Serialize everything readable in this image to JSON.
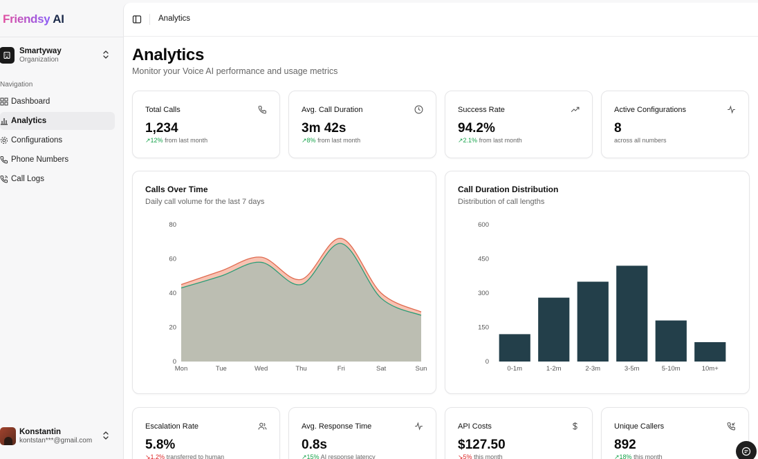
{
  "app": {
    "brand": "Friendsy",
    "brand_suffix": "AI"
  },
  "org": {
    "name": "Smartyway",
    "type": "Organization"
  },
  "nav": {
    "heading": "Navigation",
    "items": [
      {
        "label": "Dashboard",
        "icon": "dashboard-icon"
      },
      {
        "label": "Analytics",
        "icon": "bar-chart-icon",
        "active": true
      },
      {
        "label": "Configurations",
        "icon": "gear-icon"
      },
      {
        "label": "Phone Numbers",
        "icon": "phone-icon"
      },
      {
        "label": "Call Logs",
        "icon": "phone-log-icon"
      }
    ]
  },
  "user": {
    "name": "Konstantin",
    "email": "kontstan***@gmail.com"
  },
  "breadcrumb": "Analytics",
  "page": {
    "title": "Analytics",
    "subtitle": "Monitor your Voice AI performance and usage metrics"
  },
  "stats_top": [
    {
      "label": "Total Calls",
      "value": "1,234",
      "delta": "12%",
      "direction": "up",
      "note": "from last month",
      "icon": "phone-icon"
    },
    {
      "label": "Avg. Call Duration",
      "value": "3m 42s",
      "delta": "8%",
      "direction": "up",
      "note": "from last month",
      "icon": "clock-icon"
    },
    {
      "label": "Success Rate",
      "value": "94.2%",
      "delta": "2.1%",
      "direction": "up",
      "note": "from last month",
      "icon": "trending-up-icon"
    },
    {
      "label": "Active Configurations",
      "value": "8",
      "delta": "",
      "direction": "none",
      "note": "across all numbers",
      "icon": "activity-icon"
    }
  ],
  "stats_bottom": [
    {
      "label": "Escalation Rate",
      "value": "5.8%",
      "delta": "1.2%",
      "direction": "down",
      "note": "transferred to human",
      "icon": "users-icon"
    },
    {
      "label": "Avg. Response Time",
      "value": "0.8s",
      "delta": "15%",
      "direction": "up",
      "note": "AI response latency",
      "icon": "activity-icon"
    },
    {
      "label": "API Costs",
      "value": "$127.50",
      "delta": "5%",
      "direction": "down",
      "note": "this month",
      "icon": "dollar-icon"
    },
    {
      "label": "Unique Callers",
      "value": "892",
      "delta": "18%",
      "direction": "up",
      "note": "this month",
      "icon": "phone-incoming-icon"
    }
  ],
  "colors": {
    "area_back": "#f7c2b2",
    "area_back_line": "#e06a4f",
    "area_front": "#bcbeb2",
    "area_front_line": "#2a9d77",
    "bar": "#233f4a",
    "up": "#16a34a",
    "down": "#dc2626"
  },
  "chart_data": [
    {
      "type": "area",
      "title": "Calls Over Time",
      "subtitle": "Daily call volume for the last 7 days",
      "categories": [
        "Mon",
        "Tue",
        "Wed",
        "Thu",
        "Fri",
        "Sat",
        "Sun"
      ],
      "series": [
        {
          "values": [
            45,
            53,
            61,
            48,
            72,
            40,
            29
          ]
        },
        {
          "values": [
            43,
            50,
            58,
            45,
            69,
            37,
            27
          ]
        }
      ],
      "yticks": [
        0,
        20,
        40,
        60,
        80
      ],
      "ylim": [
        0,
        80
      ],
      "grid": false,
      "legend": "none"
    },
    {
      "type": "bar",
      "title": "Call Duration Distribution",
      "subtitle": "Distribution of call lengths",
      "categories": [
        "0-1m",
        "1-2m",
        "2-3m",
        "3-5m",
        "5-10m",
        "10m+"
      ],
      "values": [
        120,
        280,
        350,
        420,
        180,
        85
      ],
      "yticks": [
        0,
        150,
        300,
        450,
        600
      ],
      "ylim": [
        0,
        600
      ],
      "grid": false,
      "legend": "none"
    }
  ]
}
